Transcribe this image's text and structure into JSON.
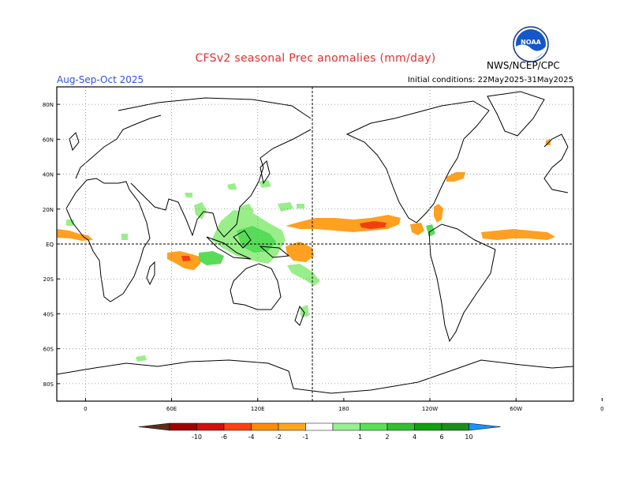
{
  "header": {
    "title": "CFSv2 seasonal Prec anomalies (mm/day)",
    "season": "Aug-Sep-Oct 2025",
    "initial_conditions": "Initial conditions: 22May2025-31May2025",
    "agency": "NWS/NCEP/CPC",
    "logo_text": "NOAA"
  },
  "map": {
    "projection": "equirectangular",
    "lon_range": [
      -20,
      340
    ],
    "lat_range": [
      -90,
      90
    ],
    "lat_labels": [
      "80N",
      "60N",
      "40N",
      "20N",
      "EQ",
      "20S",
      "40S",
      "60S",
      "80S"
    ],
    "lon_labels": [
      "0",
      "60E",
      "120E",
      "180",
      "120W",
      "60W",
      "0"
    ],
    "grid": "dotted",
    "dashed_meridian": "180"
  },
  "legend": {
    "labels": [
      "-10",
      "-6",
      "-4",
      "-2",
      "-1",
      "1",
      "2",
      "4",
      "6",
      "10"
    ],
    "colors": [
      "#5a2e1e",
      "#a00000",
      "#d01010",
      "#ff4010",
      "#ff8c00",
      "#ffa620",
      "#ffffff",
      "#98f090",
      "#58e058",
      "#30c030",
      "#10a010",
      "#1b8f1b",
      "#1e90ff"
    ]
  },
  "colors": {
    "dry_mild": "#ffa020",
    "dry_strong": "#f04010",
    "wet_mild": "#98ee88",
    "wet_mid": "#58dc58",
    "title": "#e03030",
    "season": "#3050e0"
  }
}
